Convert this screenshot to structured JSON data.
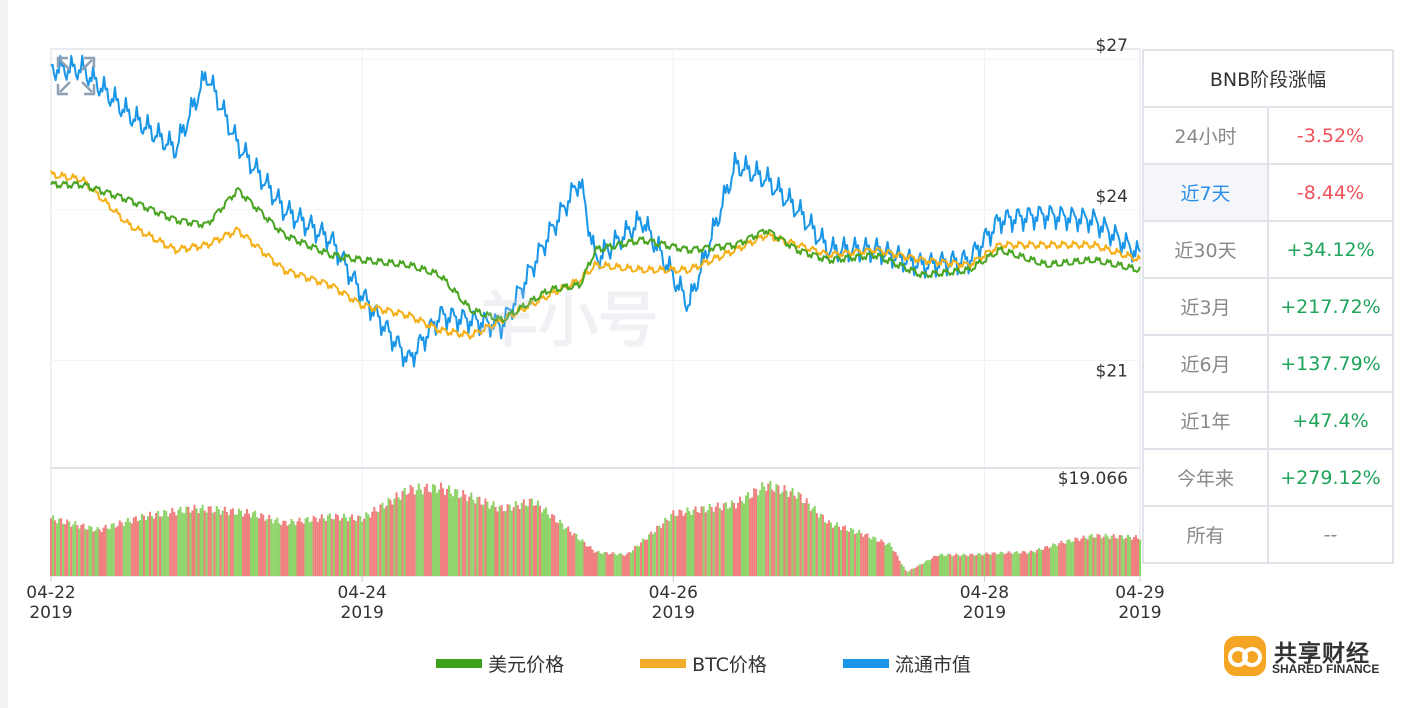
{
  "chart_data": {
    "type": "line",
    "x_ticks": [
      {
        "date": "04-22",
        "year": "2019"
      },
      {
        "date": "04-24",
        "year": "2019"
      },
      {
        "date": "04-26",
        "year": "2019"
      },
      {
        "date": "04-28",
        "year": "2019"
      },
      {
        "date": "04-29",
        "year": "2019"
      }
    ],
    "x_range": [
      "2019-04-22",
      "2019-04-29"
    ],
    "price_axis_labels": [
      "$27",
      "$24",
      "$21"
    ],
    "ylim": [
      18.9,
      27.2
    ],
    "volume_max_label": "$19.066",
    "series": [
      {
        "name": "美元价格",
        "color": "#4aa522",
        "x": [
          0,
          0.2,
          0.5,
          0.8,
          1.0,
          1.2,
          1.5,
          1.8,
          2.0,
          2.3,
          2.5,
          2.7,
          2.9,
          3.2,
          3.4,
          3.5,
          3.8,
          4.1,
          4.4,
          4.6,
          4.8,
          5.0,
          5.3,
          5.6,
          5.9,
          6.1,
          6.4,
          6.7,
          7.0
        ],
        "values": [
          24.5,
          24.5,
          24.2,
          23.8,
          23.7,
          24.4,
          23.5,
          23.1,
          23.0,
          22.9,
          22.7,
          22.0,
          21.8,
          22.4,
          22.5,
          23.2,
          23.4,
          23.2,
          23.3,
          23.6,
          23.2,
          23.0,
          23.1,
          22.7,
          22.8,
          23.2,
          22.9,
          23.0,
          22.8
        ]
      },
      {
        "name": "BTC价格",
        "color": "#f5b018",
        "x": [
          0,
          0.2,
          0.5,
          0.8,
          1.0,
          1.2,
          1.5,
          1.8,
          2.0,
          2.3,
          2.5,
          2.7,
          2.9,
          3.2,
          3.4,
          3.5,
          3.8,
          4.1,
          4.4,
          4.6,
          4.8,
          5.0,
          5.3,
          5.6,
          5.9,
          6.1,
          6.4,
          6.7,
          7.0
        ],
        "values": [
          24.7,
          24.6,
          23.7,
          23.2,
          23.3,
          23.6,
          22.8,
          22.5,
          22.1,
          21.9,
          21.6,
          21.5,
          21.8,
          22.3,
          22.6,
          22.9,
          22.8,
          22.8,
          23.2,
          23.5,
          23.3,
          23.1,
          23.2,
          23.0,
          22.9,
          23.3,
          23.3,
          23.3,
          23.0
        ]
      },
      {
        "name": "流通市值",
        "color": "#1a96e8",
        "x": [
          0,
          0.2,
          0.5,
          0.8,
          1.0,
          1.2,
          1.5,
          1.8,
          2.0,
          2.3,
          2.5,
          2.7,
          2.9,
          3.2,
          3.4,
          3.5,
          3.8,
          4.1,
          4.4,
          4.6,
          4.8,
          5.0,
          5.3,
          5.6,
          5.9,
          6.1,
          6.4,
          6.7,
          7.0
        ],
        "values": [
          26.8,
          26.8,
          25.9,
          25.2,
          26.7,
          25.3,
          24.0,
          23.4,
          22.3,
          21.0,
          21.9,
          21.8,
          21.7,
          23.5,
          24.6,
          23.0,
          23.8,
          22.1,
          24.9,
          24.6,
          24.0,
          23.2,
          23.2,
          22.9,
          23.0,
          23.8,
          23.9,
          23.8,
          23.1
        ]
      }
    ],
    "volume": {
      "x": [
        0,
        0.3,
        0.6,
        0.9,
        1.0,
        1.3,
        1.5,
        1.8,
        2.0,
        2.3,
        2.5,
        2.7,
        2.9,
        3.1,
        3.3,
        3.5,
        3.7,
        3.9,
        4.0,
        4.2,
        4.4,
        4.6,
        4.8,
        5.0,
        5.2,
        5.4,
        5.5,
        5.7,
        5.9,
        6.1,
        6.3,
        6.5,
        6.7,
        7.0
      ],
      "values": [
        0.6,
        0.48,
        0.62,
        0.7,
        0.7,
        0.65,
        0.55,
        0.62,
        0.6,
        0.9,
        0.92,
        0.82,
        0.7,
        0.78,
        0.52,
        0.25,
        0.22,
        0.5,
        0.65,
        0.7,
        0.75,
        0.95,
        0.85,
        0.55,
        0.45,
        0.32,
        0.04,
        0.22,
        0.22,
        0.24,
        0.25,
        0.35,
        0.42,
        0.4
      ]
    }
  },
  "stats": {
    "title": "BNB阶段涨幅",
    "rows": [
      {
        "label": "24小时",
        "value": "-3.52%",
        "trend": "neg"
      },
      {
        "label": "近7天",
        "value": "-8.44%",
        "trend": "neg"
      },
      {
        "label": "近30天",
        "value": "+34.12%",
        "trend": "pos"
      },
      {
        "label": "近3月",
        "value": "+217.72%",
        "trend": "pos"
      },
      {
        "label": "近6月",
        "value": "+137.79%",
        "trend": "pos"
      },
      {
        "label": "近1年",
        "value": "+47.4%",
        "trend": "pos"
      },
      {
        "label": "今年来",
        "value": "+279.12%",
        "trend": "pos"
      },
      {
        "label": "所有",
        "value": "--",
        "trend": "none"
      }
    ]
  },
  "legend": [
    {
      "label": "美元价格",
      "color": "#3da11c"
    },
    {
      "label": "BTC价格",
      "color": "#f0ac2a"
    },
    {
      "label": "流通市值",
      "color": "#1a96e8"
    }
  ],
  "watermark": "羊小号",
  "brand": {
    "name": "共享财经",
    "sub": "SHARED FINANCE",
    "color": "#f5a524"
  },
  "icons": {
    "expand": "expand-icon",
    "brand_logo": "brand-logo-icon"
  }
}
